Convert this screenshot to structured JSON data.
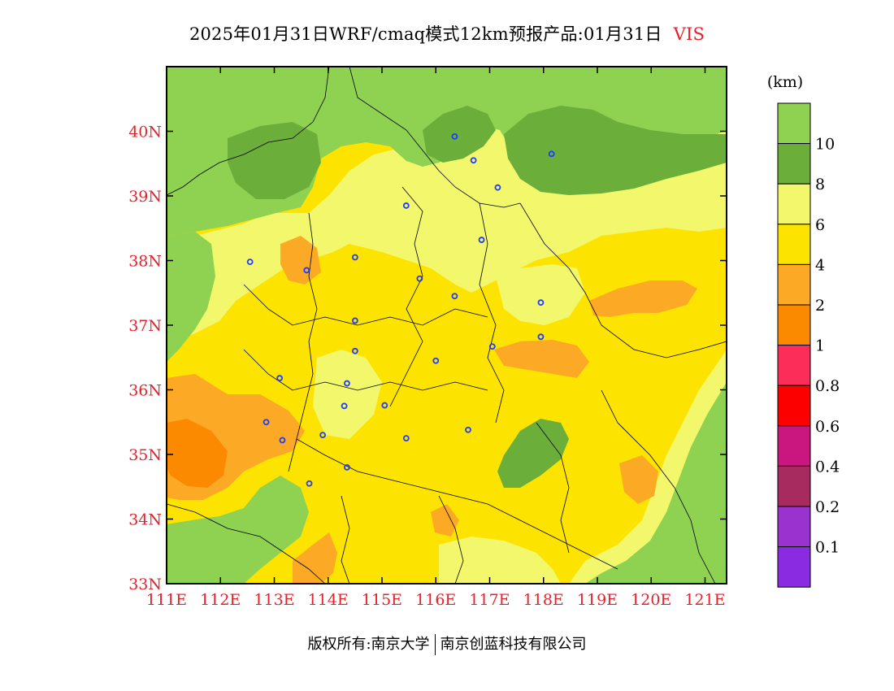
{
  "title": {
    "main": "2025年01月31日WRF/cmaq模式12km预报产品:01月31日",
    "variable": "VIS"
  },
  "legend": {
    "unit": "(km)",
    "bins": [
      {
        "label": "10",
        "color": "#8fd150"
      },
      {
        "label": "8",
        "color": "#6cae3a"
      },
      {
        "label": "6",
        "color": "#f3f76c"
      },
      {
        "label": "4",
        "color": "#fde300"
      },
      {
        "label": "2",
        "color": "#fcaa25"
      },
      {
        "label": "1",
        "color": "#fc8a00"
      },
      {
        "label": "0.8",
        "color": "#fc2d58"
      },
      {
        "label": "0.6",
        "color": "#fc0000"
      },
      {
        "label": "0.4",
        "color": "#c9177f"
      },
      {
        "label": "0.2",
        "color": "#a82b60"
      },
      {
        "label": "0.1",
        "color": "#9a32cf"
      },
      {
        "label": "",
        "color": "#8a2be2"
      }
    ]
  },
  "axes": {
    "lon_labels": [
      "111E",
      "112E",
      "113E",
      "114E",
      "115E",
      "116E",
      "117E",
      "118E",
      "119E",
      "120E",
      "121E"
    ],
    "lat_labels": [
      "33N",
      "34N",
      "35N",
      "36N",
      "37N",
      "38N",
      "39N",
      "40N"
    ],
    "lon_range": [
      111,
      121.4
    ],
    "lat_range": [
      33,
      41
    ]
  },
  "map": {
    "regions": [
      {
        "name": "north-band-green",
        "level": "10"
      },
      {
        "name": "west-edge-green",
        "level": "10"
      },
      {
        "name": "east-coast-green",
        "level": "10"
      },
      {
        "name": "southwest-green",
        "level": "10"
      },
      {
        "name": "northeast-dark-green",
        "level": "8"
      },
      {
        "name": "beijing-dark-green",
        "level": "8"
      },
      {
        "name": "shandong-green-patch",
        "level": "8"
      },
      {
        "name": "northern-yellow-light",
        "level": "6"
      },
      {
        "name": "central-yellow",
        "level": "4"
      },
      {
        "name": "southwest-orange",
        "level": "2"
      },
      {
        "name": "shandong-orange",
        "level": "2"
      },
      {
        "name": "east-orange",
        "level": "2"
      }
    ],
    "city_markers": [
      {
        "lon": 116.35,
        "lat": 39.92
      },
      {
        "lon": 116.7,
        "lat": 39.55
      },
      {
        "lon": 118.15,
        "lat": 39.65
      },
      {
        "lon": 117.15,
        "lat": 39.13
      },
      {
        "lon": 115.45,
        "lat": 38.85
      },
      {
        "lon": 116.85,
        "lat": 38.32
      },
      {
        "lon": 112.55,
        "lat": 37.98
      },
      {
        "lon": 113.6,
        "lat": 37.85
      },
      {
        "lon": 114.5,
        "lat": 38.05
      },
      {
        "lon": 115.7,
        "lat": 37.72
      },
      {
        "lon": 116.35,
        "lat": 37.45
      },
      {
        "lon": 117.95,
        "lat": 37.35
      },
      {
        "lon": 114.5,
        "lat": 37.07
      },
      {
        "lon": 117.95,
        "lat": 36.82
      },
      {
        "lon": 117.05,
        "lat": 36.67
      },
      {
        "lon": 114.5,
        "lat": 36.6
      },
      {
        "lon": 116.0,
        "lat": 36.45
      },
      {
        "lon": 113.1,
        "lat": 36.18
      },
      {
        "lon": 114.35,
        "lat": 36.1
      },
      {
        "lon": 114.3,
        "lat": 35.75
      },
      {
        "lon": 115.05,
        "lat": 35.76
      },
      {
        "lon": 112.85,
        "lat": 35.5
      },
      {
        "lon": 113.9,
        "lat": 35.3
      },
      {
        "lon": 113.15,
        "lat": 35.22
      },
      {
        "lon": 115.45,
        "lat": 35.25
      },
      {
        "lon": 116.6,
        "lat": 35.38
      },
      {
        "lon": 114.35,
        "lat": 34.8
      },
      {
        "lon": 113.65,
        "lat": 34.55
      }
    ]
  },
  "footer": {
    "copyright": "版权所有:南京大学",
    "company": "南京创蓝科技有限公司"
  }
}
